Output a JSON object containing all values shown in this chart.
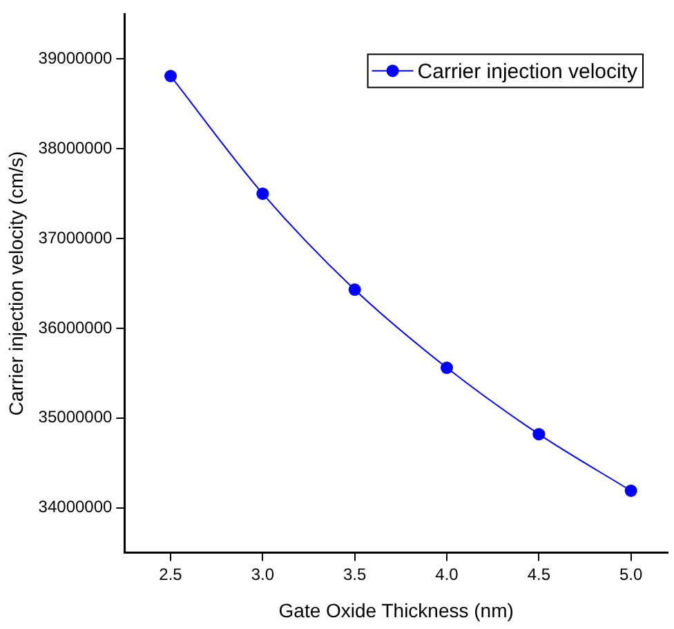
{
  "chart_data": {
    "type": "line",
    "xlabel": "Gate Oxide Thickness (nm)",
    "ylabel": "Carrier injection velocity (cm/s)",
    "x": [
      2.5,
      3.0,
      3.5,
      4.0,
      4.5,
      5.0
    ],
    "series": [
      {
        "name": "Carrier injection velocity",
        "color": "#0000ff",
        "values": [
          38810000,
          37500000,
          36430000,
          35560000,
          34820000,
          34190000
        ]
      }
    ],
    "xlim": [
      2.25,
      5.2
    ],
    "xticks": [
      {
        "value": 2.5,
        "label": "2.5"
      },
      {
        "value": 3.0,
        "label": "3.0"
      },
      {
        "value": 3.5,
        "label": "3.5"
      },
      {
        "value": 4.0,
        "label": "4.0"
      },
      {
        "value": 4.5,
        "label": "4.5"
      },
      {
        "value": 5.0,
        "label": "5.0"
      }
    ],
    "ylim": [
      33500000,
      39500000
    ],
    "yticks": [
      34000000,
      35000000,
      36000000,
      37000000,
      38000000,
      39000000
    ],
    "grid": false,
    "legend": "top right",
    "marker": "circle",
    "line_style": "solid"
  }
}
